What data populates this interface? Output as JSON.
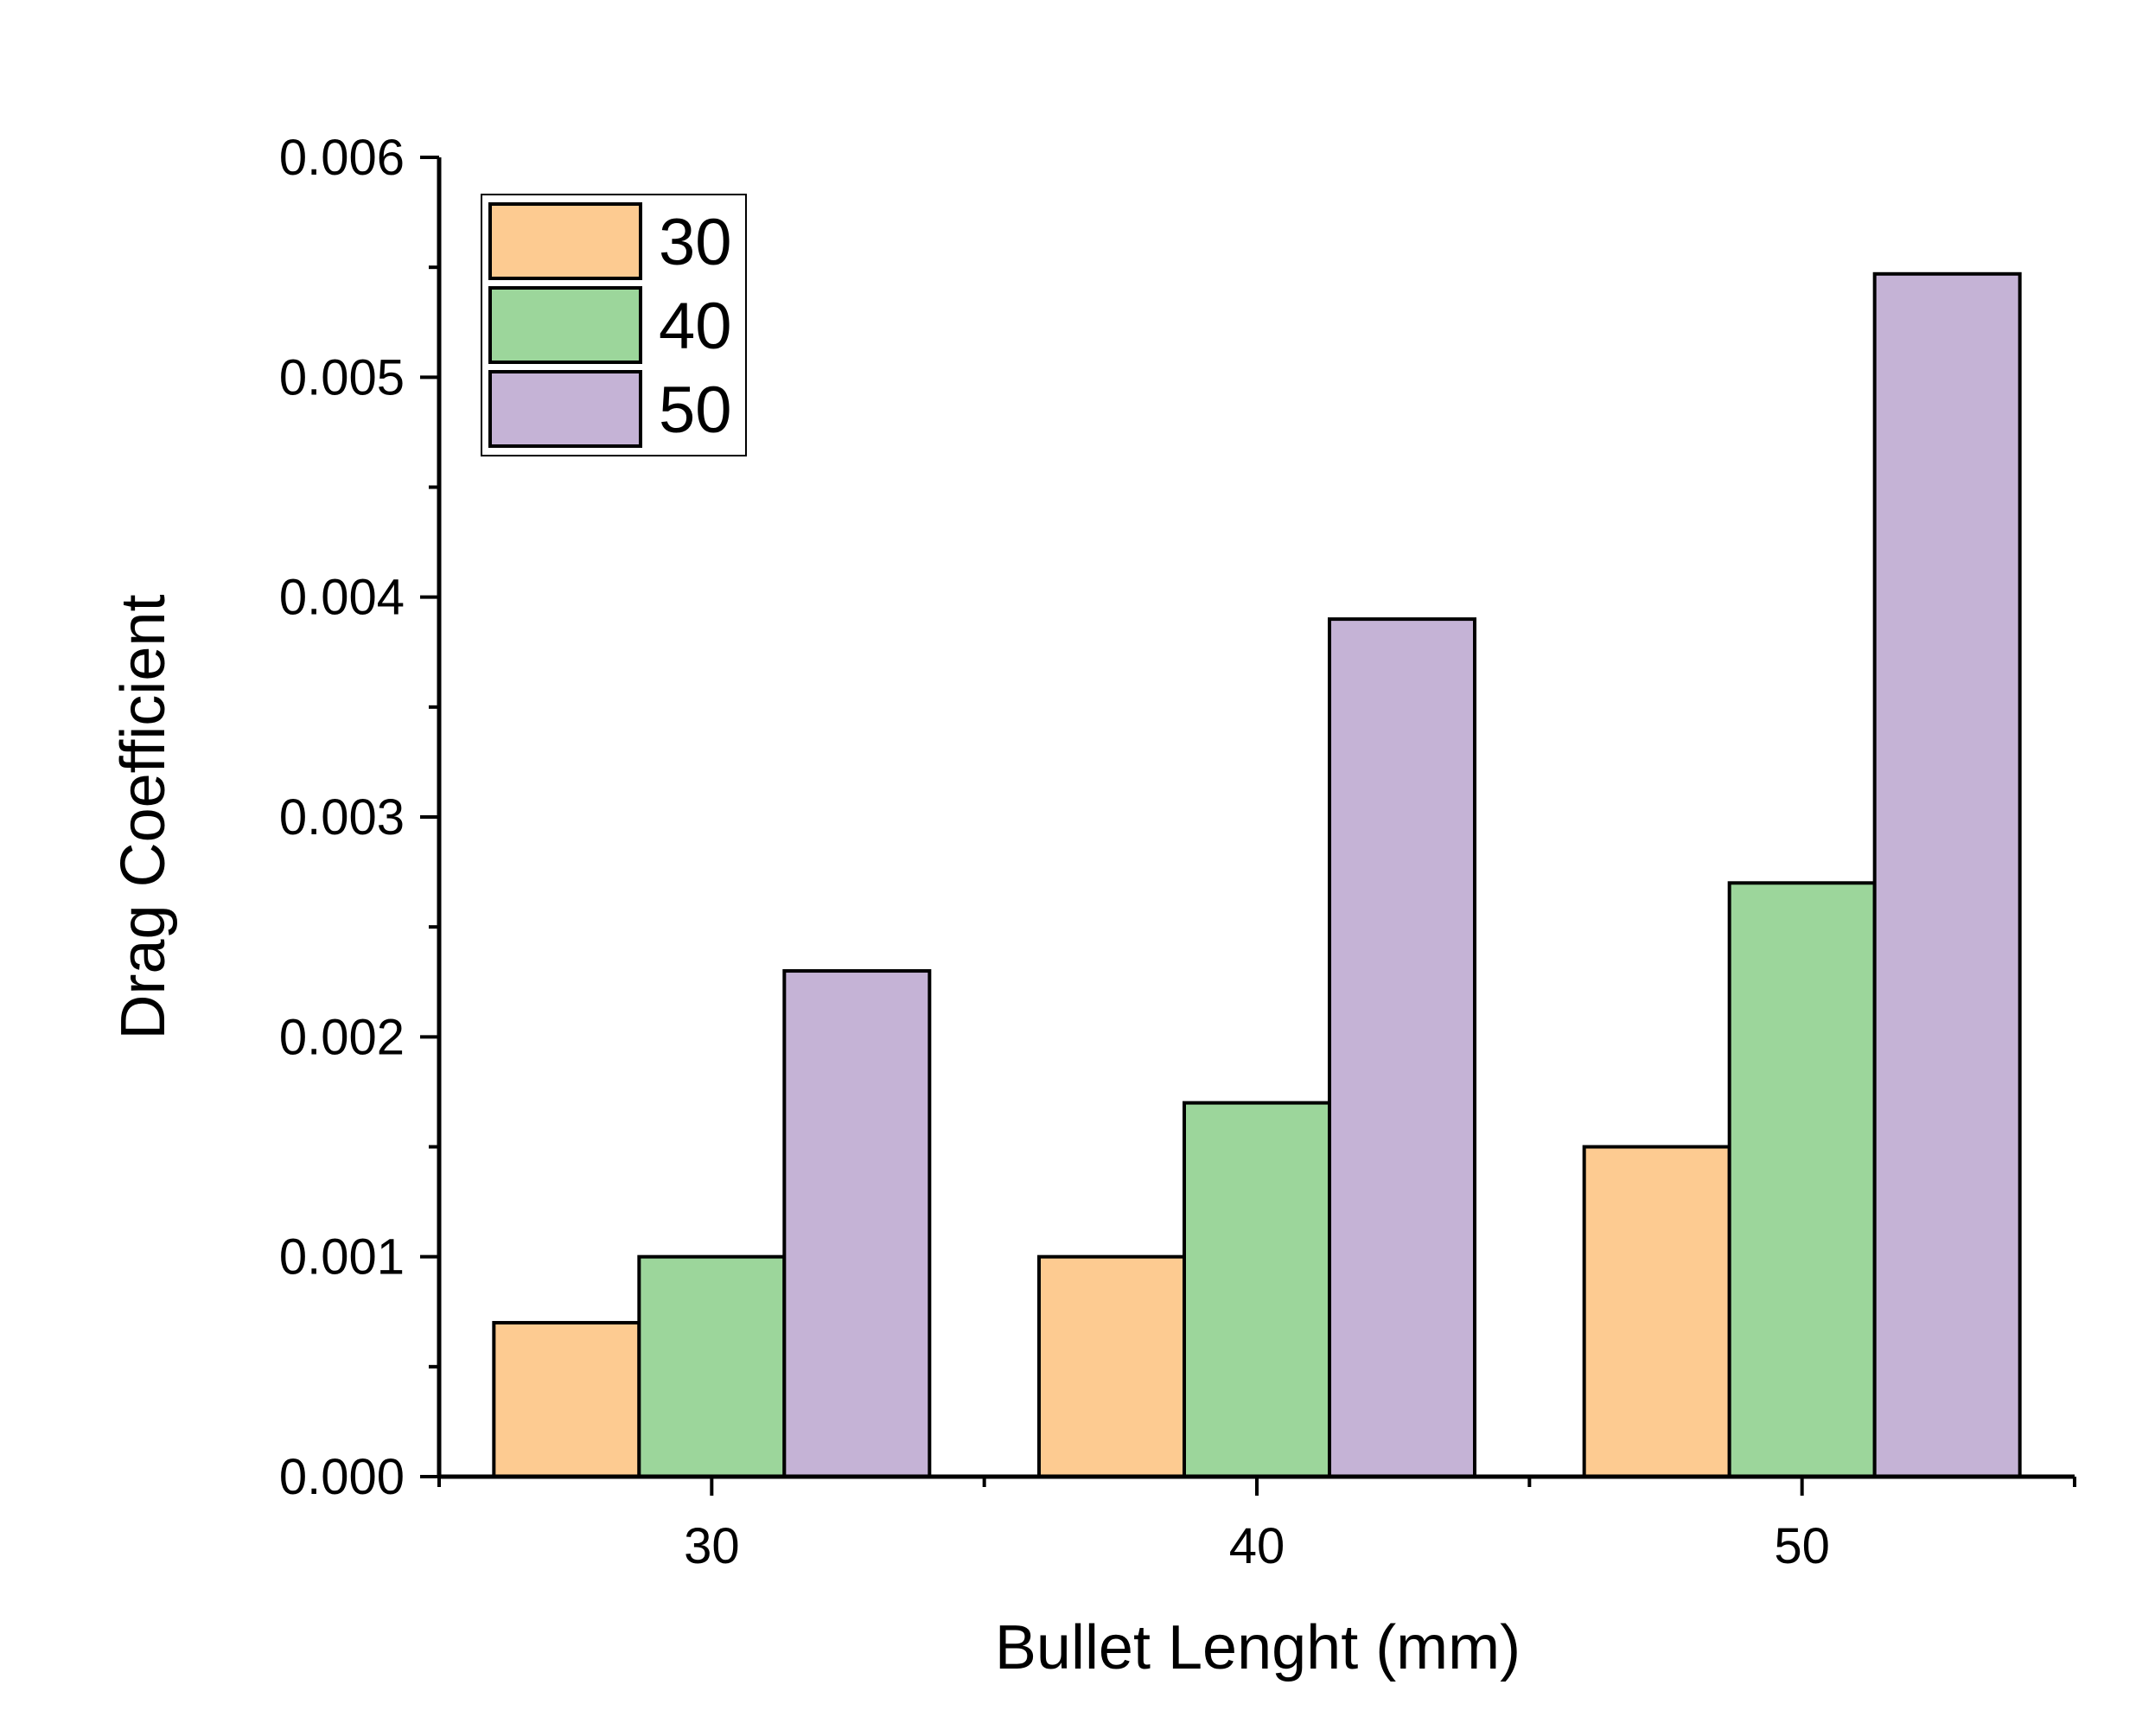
{
  "chart_data": {
    "type": "bar",
    "title": "",
    "xlabel": "Bullet Lenght (mm)",
    "ylabel": "Drag Coefficient",
    "categories": [
      "30",
      "40",
      "50"
    ],
    "ylim": [
      0,
      0.006
    ],
    "yticks": [
      "0.000",
      "0.001",
      "0.002",
      "0.003",
      "0.004",
      "0.005",
      "0.006"
    ],
    "grid": false,
    "legend_position": "top-left",
    "series": [
      {
        "name": "30",
        "color": "#fdcb91",
        "values": [
          0.0007,
          0.001,
          0.0015
        ]
      },
      {
        "name": "40",
        "color": "#9cd69b",
        "values": [
          0.001,
          0.0017,
          0.0027
        ]
      },
      {
        "name": "50",
        "color": "#c5b3d6",
        "values": [
          0.0023,
          0.0039,
          0.00547
        ]
      }
    ]
  }
}
